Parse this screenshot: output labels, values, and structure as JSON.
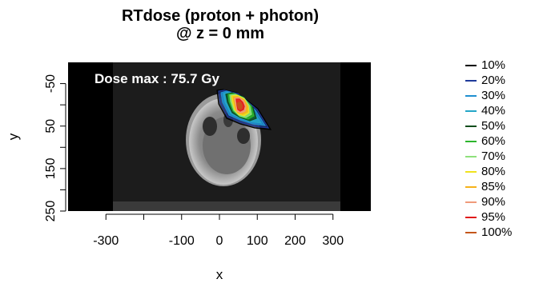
{
  "chart_data": {
    "type": "heatmap",
    "title": "RTdose (proton + photon)",
    "subtitle": "@ z = 0 mm",
    "xlabel": "x",
    "ylabel": "y",
    "annotation": "Dose max : 75.7 Gy",
    "xlim": [
      -400,
      400
    ],
    "ylim": [
      250,
      -100
    ],
    "y_reversed": true,
    "x_ticks": [
      -300,
      -100,
      0,
      100,
      200,
      300
    ],
    "x_minor_ticks": [
      -200
    ],
    "y_ticks": [
      -50,
      50,
      150,
      250
    ],
    "y_minor_ticks": [
      0,
      100,
      200
    ],
    "legend_position": "right",
    "background": "CT slice (grayscale) with dose isodose contours overlaid",
    "isodose_levels": [
      {
        "label": "10%",
        "color": "#000000"
      },
      {
        "label": "20%",
        "color": "#1f3a9a"
      },
      {
        "label": "30%",
        "color": "#1f8fd0"
      },
      {
        "label": "40%",
        "color": "#24a6c8"
      },
      {
        "label": "50%",
        "color": "#0c4d1c"
      },
      {
        "label": "60%",
        "color": "#2cb52c"
      },
      {
        "label": "70%",
        "color": "#8ee07c"
      },
      {
        "label": "80%",
        "color": "#f0e21e"
      },
      {
        "label": "85%",
        "color": "#f6b21a"
      },
      {
        "label": "90%",
        "color": "#f09a7a"
      },
      {
        "label": "95%",
        "color": "#e01a1a"
      },
      {
        "label": "100%",
        "color": "#c4561a"
      }
    ]
  }
}
